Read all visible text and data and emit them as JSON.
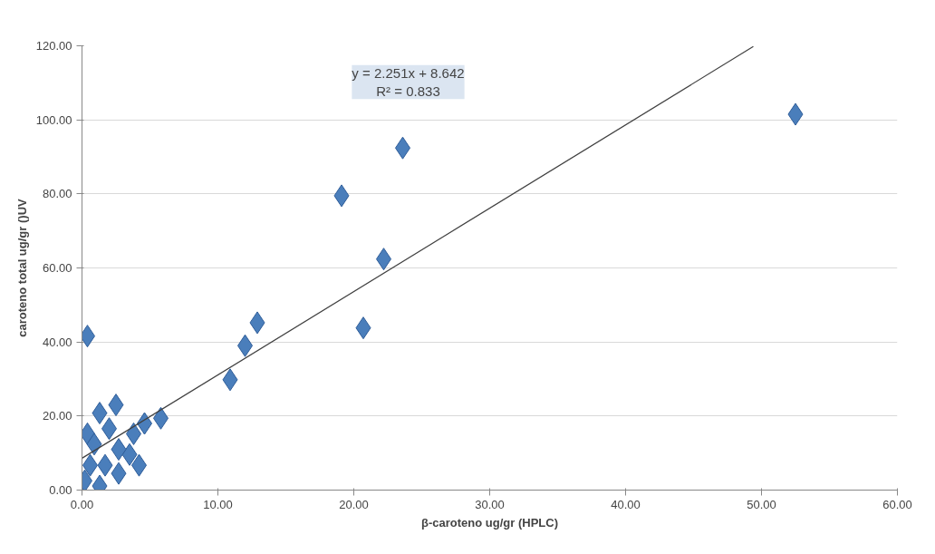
{
  "chart_data": {
    "type": "scatter",
    "xlabel": "β-caroteno ug/gr (HPLC)",
    "ylabel": "caroteno total ug/gr ()UV",
    "xlim": [
      0,
      60
    ],
    "ylim": [
      0,
      120
    ],
    "xticks": [
      {
        "value": 0,
        "label": "0.00"
      },
      {
        "value": 10,
        "label": "10.00"
      },
      {
        "value": 20,
        "label": "20.00"
      },
      {
        "value": 30,
        "label": "30.00"
      },
      {
        "value": 40,
        "label": "40.00"
      },
      {
        "value": 50,
        "label": "50.00"
      },
      {
        "value": 60,
        "label": "60.00"
      }
    ],
    "yticks": [
      {
        "value": 0,
        "label": "0.00"
      },
      {
        "value": 20,
        "label": "20.00"
      },
      {
        "value": 40,
        "label": "40.00"
      },
      {
        "value": 60,
        "label": "60.00"
      },
      {
        "value": 80,
        "label": "80.00"
      },
      {
        "value": 100,
        "label": "100.00"
      },
      {
        "value": 120,
        "label": "120.00"
      }
    ],
    "grid": "y",
    "marker": "diamond",
    "annotations": [
      "y = 2.251x + 8.642\nR² = 0.833"
    ],
    "series": [
      {
        "color": "#4a7ebb",
        "x": [
          52.5,
          23.6,
          19.1,
          22.2,
          20.7,
          12.9,
          12.0,
          10.9,
          0.4,
          5.8,
          4.6,
          2.5,
          1.3,
          0.4,
          0.9,
          0.6,
          0.2,
          1.7,
          2.7,
          3.5,
          3.8,
          2.7,
          1.3,
          2.0,
          4.2
        ],
        "values": [
          101.5,
          92.4,
          79.5,
          62.4,
          43.8,
          45.2,
          39.0,
          29.8,
          41.6,
          19.4,
          18.0,
          23.0,
          20.8,
          15.2,
          12.4,
          6.7,
          2.5,
          6.7,
          4.5,
          9.6,
          15.2,
          11.0,
          1.1,
          16.6,
          6.7
        ]
      },
      {
        "type": "line",
        "color": "#404040",
        "marker": "none",
        "x": [
          0,
          49.4
        ],
        "values": [
          8.6,
          119.8
        ]
      }
    ]
  }
}
